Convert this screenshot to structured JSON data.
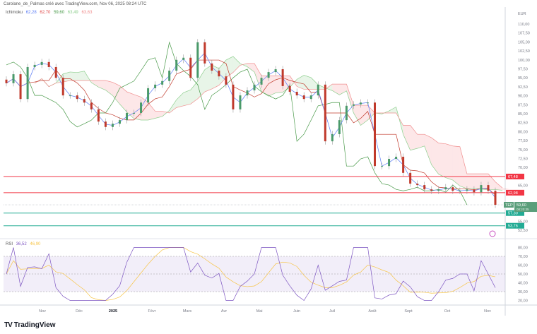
{
  "header": {
    "attribution": "Carolane_de_Palmas créé avec TradingView.com, Nov 06, 2025 08:24 UTC"
  },
  "legend": {
    "indicator": "Ichimoku",
    "values": [
      "62,28",
      "62,70",
      "59,60",
      "63,49",
      "63,63"
    ],
    "colors": [
      "#5b7cf5",
      "#e04848",
      "#4a9a4a",
      "#8fcf8f",
      "#f08f8f"
    ]
  },
  "rsi_legend": {
    "label": "RSI",
    "value": "36,52",
    "ma": "46,90",
    "colors": [
      "#7e57c2",
      "#f7c548"
    ]
  },
  "brand": {
    "name": "TradingView"
  },
  "chart_data": [
    {
      "type": "candlestick",
      "currency": "EUR",
      "ylim": [
        50,
        112.5
      ],
      "yticks": [
        "110,00",
        "107,50",
        "105,00",
        "102,50",
        "100,00",
        "97,50",
        "95,00",
        "92,50",
        "90,00",
        "87,50",
        "85,00",
        "82,50",
        "80,00",
        "77,50",
        "75,00",
        "72,50",
        "70,00",
        "65,00",
        "55,00",
        "52,50"
      ],
      "xticks": [
        "Nov",
        "Déc",
        "2025",
        "Févr",
        "Mars",
        "Avr",
        "Mai",
        "Juin",
        "Juil",
        "Août",
        "Sept",
        "Oct",
        "Nov"
      ],
      "closes": [
        93.5,
        96.0,
        89.1,
        98.0,
        98.6,
        99.4,
        98.0,
        95.0,
        90.1,
        90.1,
        89.1,
        88.1,
        86.2,
        82.8,
        81.3,
        82.2,
        83.2,
        85.2,
        85.2,
        88.1,
        92.1,
        93.1,
        94.1,
        97.0,
        100.0,
        100.6,
        95.0,
        104.9,
        99.0,
        97.0,
        95.4,
        93.1,
        86.2,
        90.1,
        91.5,
        93.1,
        95.0,
        96.6,
        97.4,
        92.7,
        91.1,
        90.1,
        89.1,
        90.1,
        93.1,
        77.3,
        79.3,
        83.2,
        87.2,
        87.6,
        88.1,
        88.1,
        70.4,
        70.4,
        72.4,
        73.0,
        68.5,
        65.5,
        65.1,
        63.9,
        63.5,
        63.9,
        64.5,
        63.5,
        63.5,
        63.9,
        63.1,
        65.1,
        63.5,
        59.6
      ],
      "levels": [
        {
          "value": 67.48,
          "label": "67,48",
          "color": "#f23645"
        },
        {
          "value": 62.98,
          "label": "62,98",
          "color": "#f23645"
        },
        {
          "value": 57.3,
          "label": "57,30",
          "color": "#22ab94"
        },
        {
          "value": 53.76,
          "label": "53,76",
          "color": "#22ab94"
        }
      ],
      "last": {
        "symbol": "TEP",
        "price": "59,60",
        "countdown": "08:20:35",
        "value": 59.6
      },
      "up_color": "#4a9a6a",
      "down_color": "#c0392b"
    },
    {
      "type": "line",
      "name": "RSI",
      "ylim": [
        15,
        92
      ],
      "yticks": [
        "80,00",
        "70,00",
        "60,00",
        "50,00",
        "40,00",
        "30,00",
        "20,00"
      ],
      "band": [
        30,
        70
      ],
      "midline": 50
    }
  ]
}
